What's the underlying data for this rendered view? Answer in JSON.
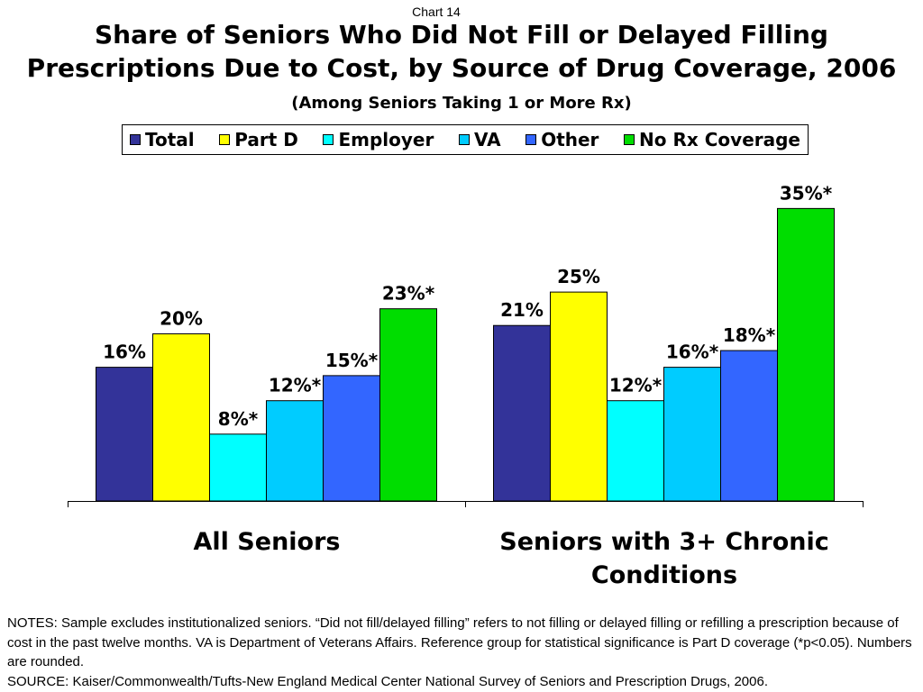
{
  "header": {
    "chart_number": "Chart 14"
  },
  "chart_data": {
    "type": "bar",
    "title": [
      "Share of Seniors Who Did Not Fill or Delayed Filling",
      "Prescriptions Due to Cost, by Source of Drug Coverage, 2006"
    ],
    "subtitle": "(Among Seniors Taking 1 or More Rx)",
    "categories": [
      "All Seniors",
      "Seniors with 3+ Chronic Conditions"
    ],
    "series": [
      {
        "name": "Total",
        "color": "#333399",
        "values": [
          16,
          21
        ],
        "labels": [
          "16%",
          "21%"
        ]
      },
      {
        "name": "Part D",
        "color": "#FFFF00",
        "values": [
          20,
          25
        ],
        "labels": [
          "20%",
          "25%"
        ]
      },
      {
        "name": "Employer",
        "color": "#00FFFF",
        "values": [
          8,
          12
        ],
        "labels": [
          "8%*",
          "12%*"
        ]
      },
      {
        "name": "VA",
        "color": "#00CCFF",
        "values": [
          12,
          16
        ],
        "labels": [
          "12%*",
          "16%*"
        ]
      },
      {
        "name": "Other",
        "color": "#3366FF",
        "values": [
          15,
          18
        ],
        "labels": [
          "15%*",
          "18%*"
        ]
      },
      {
        "name": "No Rx Coverage",
        "color": "#00DD00",
        "values": [
          23,
          35
        ],
        "labels": [
          "23%*",
          "35%*"
        ]
      }
    ],
    "ylim": [
      0,
      40
    ],
    "y_axis_visible": false,
    "grid": false,
    "legend_position": "top",
    "bar_outline_color": "#000000"
  },
  "footer": {
    "notes": "NOTES: Sample excludes institutionalized seniors. “Did not fill/delayed filling” refers to not filling or delayed filling or refilling a prescription because of cost in the past twelve months. VA is Department of Veterans Affairs. Reference group for statistical significance is Part D coverage (*p<0.05). Numbers are rounded.",
    "source": "SOURCE: Kaiser/Commonwealth/Tufts-New England Medical Center National Survey of Seniors and Prescription Drugs, 2006."
  }
}
